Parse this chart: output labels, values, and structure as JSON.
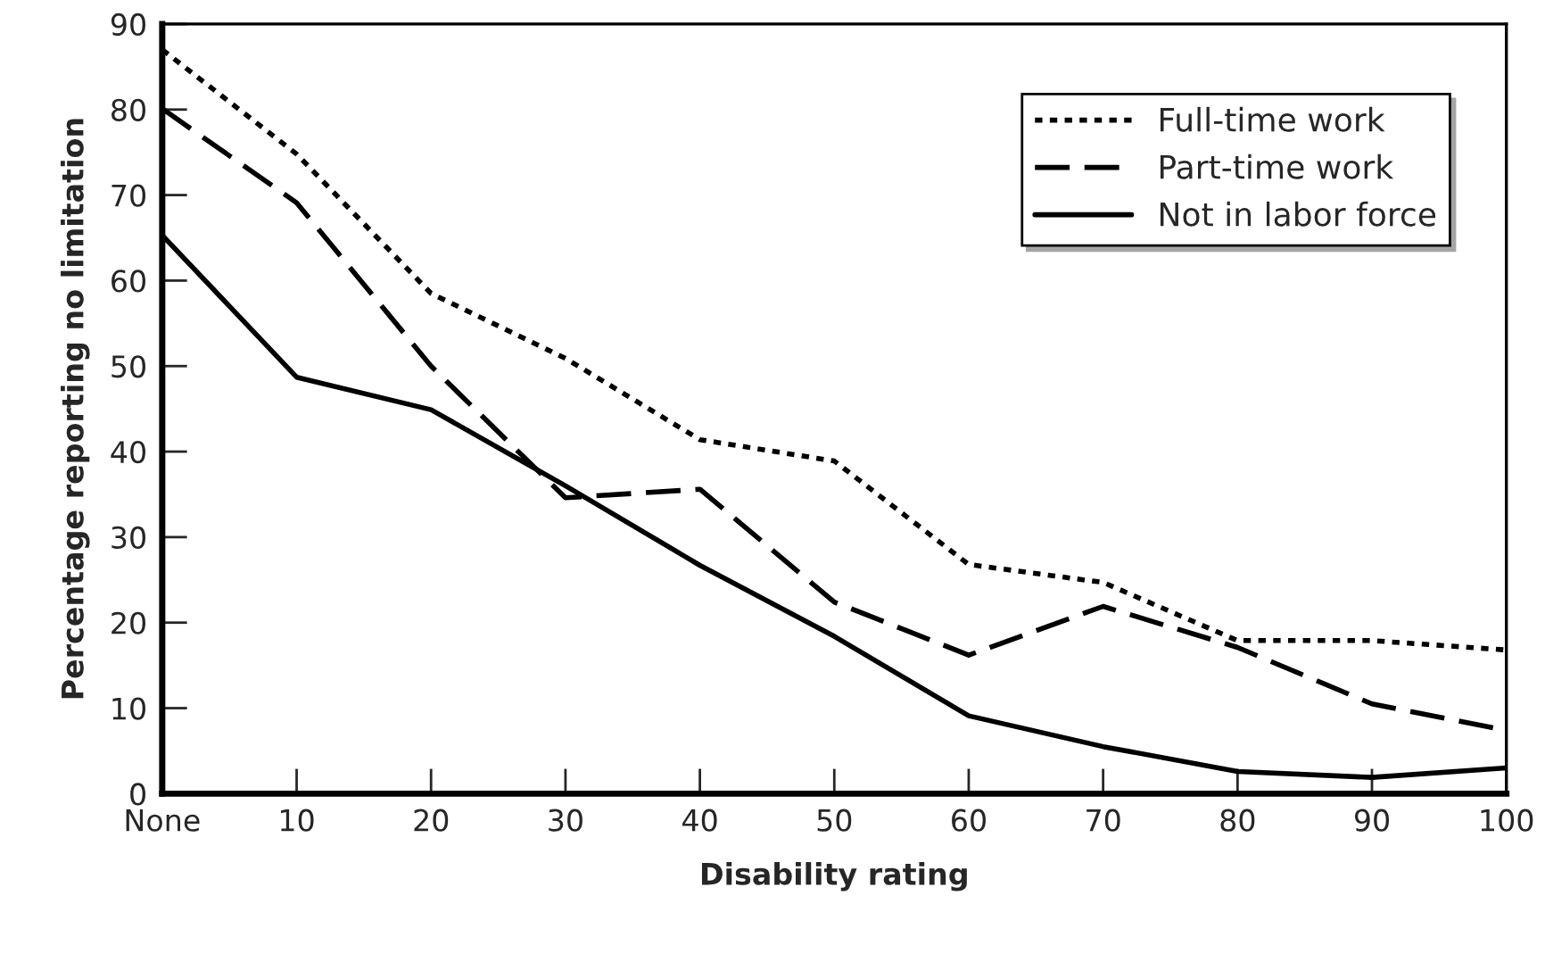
{
  "chart_data": {
    "type": "line",
    "xlabel": "Disability rating",
    "ylabel": "Percentage reporting no limitation",
    "categories": [
      "None",
      "10",
      "20",
      "30",
      "40",
      "50",
      "60",
      "70",
      "80",
      "90",
      "100"
    ],
    "series": [
      {
        "name": "Full-time work",
        "color": "#000000",
        "line_style": "dotted",
        "values": [
          87,
          74.8,
          58.5,
          50.9,
          41.4,
          38.9,
          26.8,
          24.7,
          17.9,
          17.9,
          16.8
        ]
      },
      {
        "name": "Part-time work",
        "color": "#000000",
        "line_style": "dashed",
        "values": [
          80.1,
          69.1,
          50,
          34.6,
          35.6,
          22.4,
          16.2,
          21.9,
          17.1,
          10.5,
          7.4
        ]
      },
      {
        "name": "Not in labor force",
        "color": "#000000",
        "line_style": "solid",
        "values": [
          65.3,
          48.7,
          44.9,
          36,
          26.7,
          18.4,
          9.1,
          5.5,
          2.6,
          1.9,
          3.0
        ]
      }
    ],
    "ylim": [
      0,
      90
    ],
    "yticks": [
      0,
      10,
      20,
      30,
      40,
      50,
      60,
      70,
      80,
      90
    ],
    "grid": false,
    "legend": "top right",
    "marker": "none"
  }
}
